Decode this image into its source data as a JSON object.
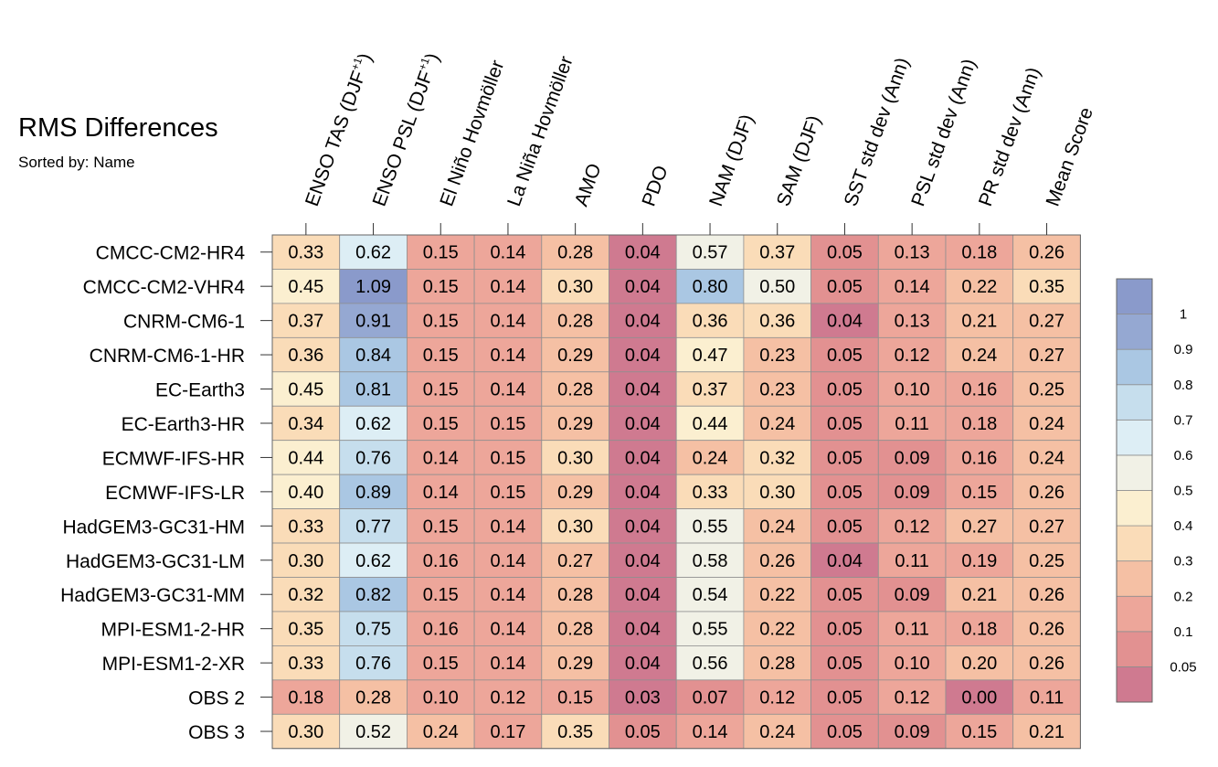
{
  "title": "RMS Differences",
  "subtitle": "Sorted by: Name",
  "chart_data": {
    "type": "heatmap",
    "columns": [
      {
        "base": "ENSO TAS (DJF",
        "sup": "+1",
        "tail": ")"
      },
      {
        "base": "ENSO PSL (DJF",
        "sup": "+1",
        "tail": ")"
      },
      {
        "base": "El Niño Hovmöller",
        "sup": "",
        "tail": ""
      },
      {
        "base": "La Niña Hovmöller",
        "sup": "",
        "tail": ""
      },
      {
        "base": "AMO",
        "sup": "",
        "tail": ""
      },
      {
        "base": "PDO",
        "sup": "",
        "tail": ""
      },
      {
        "base": "NAM (DJF)",
        "sup": "",
        "tail": ""
      },
      {
        "base": "SAM (DJF)",
        "sup": "",
        "tail": ""
      },
      {
        "base": "SST std dev (Ann)",
        "sup": "",
        "tail": ""
      },
      {
        "base": "PSL std dev (Ann)",
        "sup": "",
        "tail": ""
      },
      {
        "base": "PR std dev (Ann)",
        "sup": "",
        "tail": ""
      },
      {
        "base": "Mean Score",
        "sup": "",
        "tail": ""
      }
    ],
    "rows": [
      "CMCC-CM2-HR4",
      "CMCC-CM2-VHR4",
      "CNRM-CM6-1",
      "CNRM-CM6-1-HR",
      "EC-Earth3",
      "EC-Earth3-HR",
      "ECMWF-IFS-HR",
      "ECMWF-IFS-LR",
      "HadGEM3-GC31-HM",
      "HadGEM3-GC31-LM",
      "HadGEM3-GC31-MM",
      "MPI-ESM1-2-HR",
      "MPI-ESM1-2-XR",
      "OBS 2",
      "OBS 3"
    ],
    "values": [
      [
        "0.33",
        "0.62",
        "0.15",
        "0.14",
        "0.28",
        "0.04",
        "0.57",
        "0.37",
        "0.05",
        "0.13",
        "0.18",
        "0.26"
      ],
      [
        "0.45",
        "1.09",
        "0.15",
        "0.14",
        "0.30",
        "0.04",
        "0.80",
        "0.50",
        "0.05",
        "0.14",
        "0.22",
        "0.35"
      ],
      [
        "0.37",
        "0.91",
        "0.15",
        "0.14",
        "0.28",
        "0.04",
        "0.36",
        "0.36",
        "0.04",
        "0.13",
        "0.21",
        "0.27"
      ],
      [
        "0.36",
        "0.84",
        "0.15",
        "0.14",
        "0.29",
        "0.04",
        "0.47",
        "0.23",
        "0.05",
        "0.12",
        "0.24",
        "0.27"
      ],
      [
        "0.45",
        "0.81",
        "0.15",
        "0.14",
        "0.28",
        "0.04",
        "0.37",
        "0.23",
        "0.05",
        "0.10",
        "0.16",
        "0.25"
      ],
      [
        "0.34",
        "0.62",
        "0.15",
        "0.15",
        "0.29",
        "0.04",
        "0.44",
        "0.24",
        "0.05",
        "0.11",
        "0.18",
        "0.24"
      ],
      [
        "0.44",
        "0.76",
        "0.14",
        "0.15",
        "0.30",
        "0.04",
        "0.24",
        "0.32",
        "0.05",
        "0.09",
        "0.16",
        "0.24"
      ],
      [
        "0.40",
        "0.89",
        "0.14",
        "0.15",
        "0.29",
        "0.04",
        "0.33",
        "0.30",
        "0.05",
        "0.09",
        "0.15",
        "0.26"
      ],
      [
        "0.33",
        "0.77",
        "0.15",
        "0.14",
        "0.30",
        "0.04",
        "0.55",
        "0.24",
        "0.05",
        "0.12",
        "0.27",
        "0.27"
      ],
      [
        "0.30",
        "0.62",
        "0.16",
        "0.14",
        "0.27",
        "0.04",
        "0.58",
        "0.26",
        "0.04",
        "0.11",
        "0.19",
        "0.25"
      ],
      [
        "0.32",
        "0.82",
        "0.15",
        "0.14",
        "0.28",
        "0.04",
        "0.54",
        "0.22",
        "0.05",
        "0.09",
        "0.21",
        "0.26"
      ],
      [
        "0.35",
        "0.75",
        "0.16",
        "0.14",
        "0.28",
        "0.04",
        "0.55",
        "0.22",
        "0.05",
        "0.11",
        "0.18",
        "0.26"
      ],
      [
        "0.33",
        "0.76",
        "0.15",
        "0.14",
        "0.29",
        "0.04",
        "0.56",
        "0.28",
        "0.05",
        "0.10",
        "0.20",
        "0.26"
      ],
      [
        "0.18",
        "0.28",
        "0.10",
        "0.12",
        "0.15",
        "0.03",
        "0.07",
        "0.12",
        "0.05",
        "0.12",
        "0.00",
        "0.11"
      ],
      [
        "0.30",
        "0.52",
        "0.24",
        "0.17",
        "0.35",
        "0.05",
        "0.14",
        "0.24",
        "0.05",
        "0.09",
        "0.15",
        "0.21"
      ]
    ],
    "colorbar": {
      "levels": [
        "1",
        "0.9",
        "0.8",
        "0.7",
        "0.6",
        "0.5",
        "0.4",
        "0.3",
        "0.2",
        "0.1",
        "0.05"
      ],
      "thresholds": [
        0.05,
        0.1,
        0.2,
        0.3,
        0.4,
        0.5,
        0.6,
        0.7,
        0.8,
        0.9,
        1
      ],
      "colors": [
        "#cf7a90",
        "#e29191",
        "#eda69a",
        "#f5c0a4",
        "#fadcb8",
        "#fbefd0",
        "#f1f1e6",
        "#ddeef5",
        "#c6deed",
        "#aac7e3",
        "#95a8d2",
        "#8a9acb"
      ]
    }
  }
}
